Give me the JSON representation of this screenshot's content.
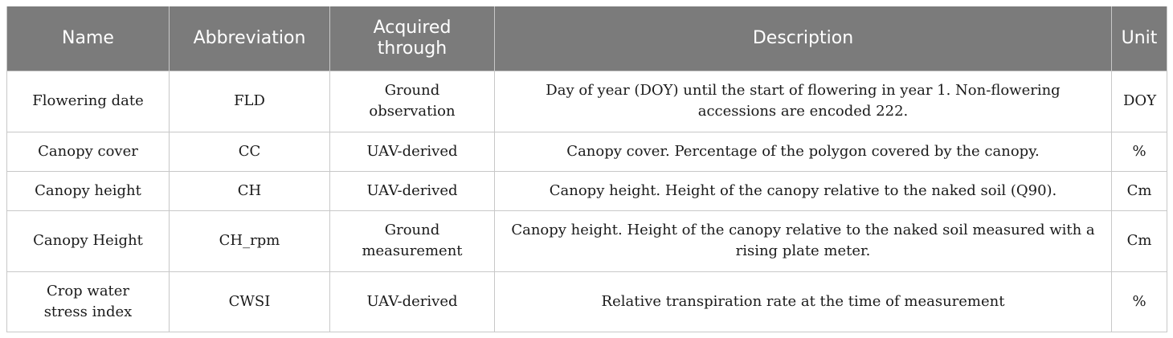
{
  "table": {
    "headers": [
      "Name",
      "Abbreviation",
      "Acquired through",
      "Description",
      "Unit"
    ],
    "rows": [
      [
        "Flowering date",
        "FLD",
        "Ground observation",
        "Day of year (DOY) until the start of flowering in year 1. Non-flowering accessions are encoded 222.",
        "DOY"
      ],
      [
        "Canopy cover",
        "CC",
        "UAV-derived",
        "Canopy cover. Percentage of the polygon covered by the canopy.",
        "%"
      ],
      [
        "Canopy height",
        "CH",
        "UAV-derived",
        "Canopy height. Height of the canopy relative to the naked soil (Q90).",
        "Cm"
      ],
      [
        "Canopy Height",
        "CH_rpm",
        "Ground measurement",
        "Canopy height. Height of the canopy relative to the naked soil measured with a rising plate meter.",
        "Cm"
      ],
      [
        "Crop water stress index",
        "CWSI",
        "UAV-derived",
        "Relative transpiration rate at the time of measurement",
        "%"
      ]
    ]
  }
}
